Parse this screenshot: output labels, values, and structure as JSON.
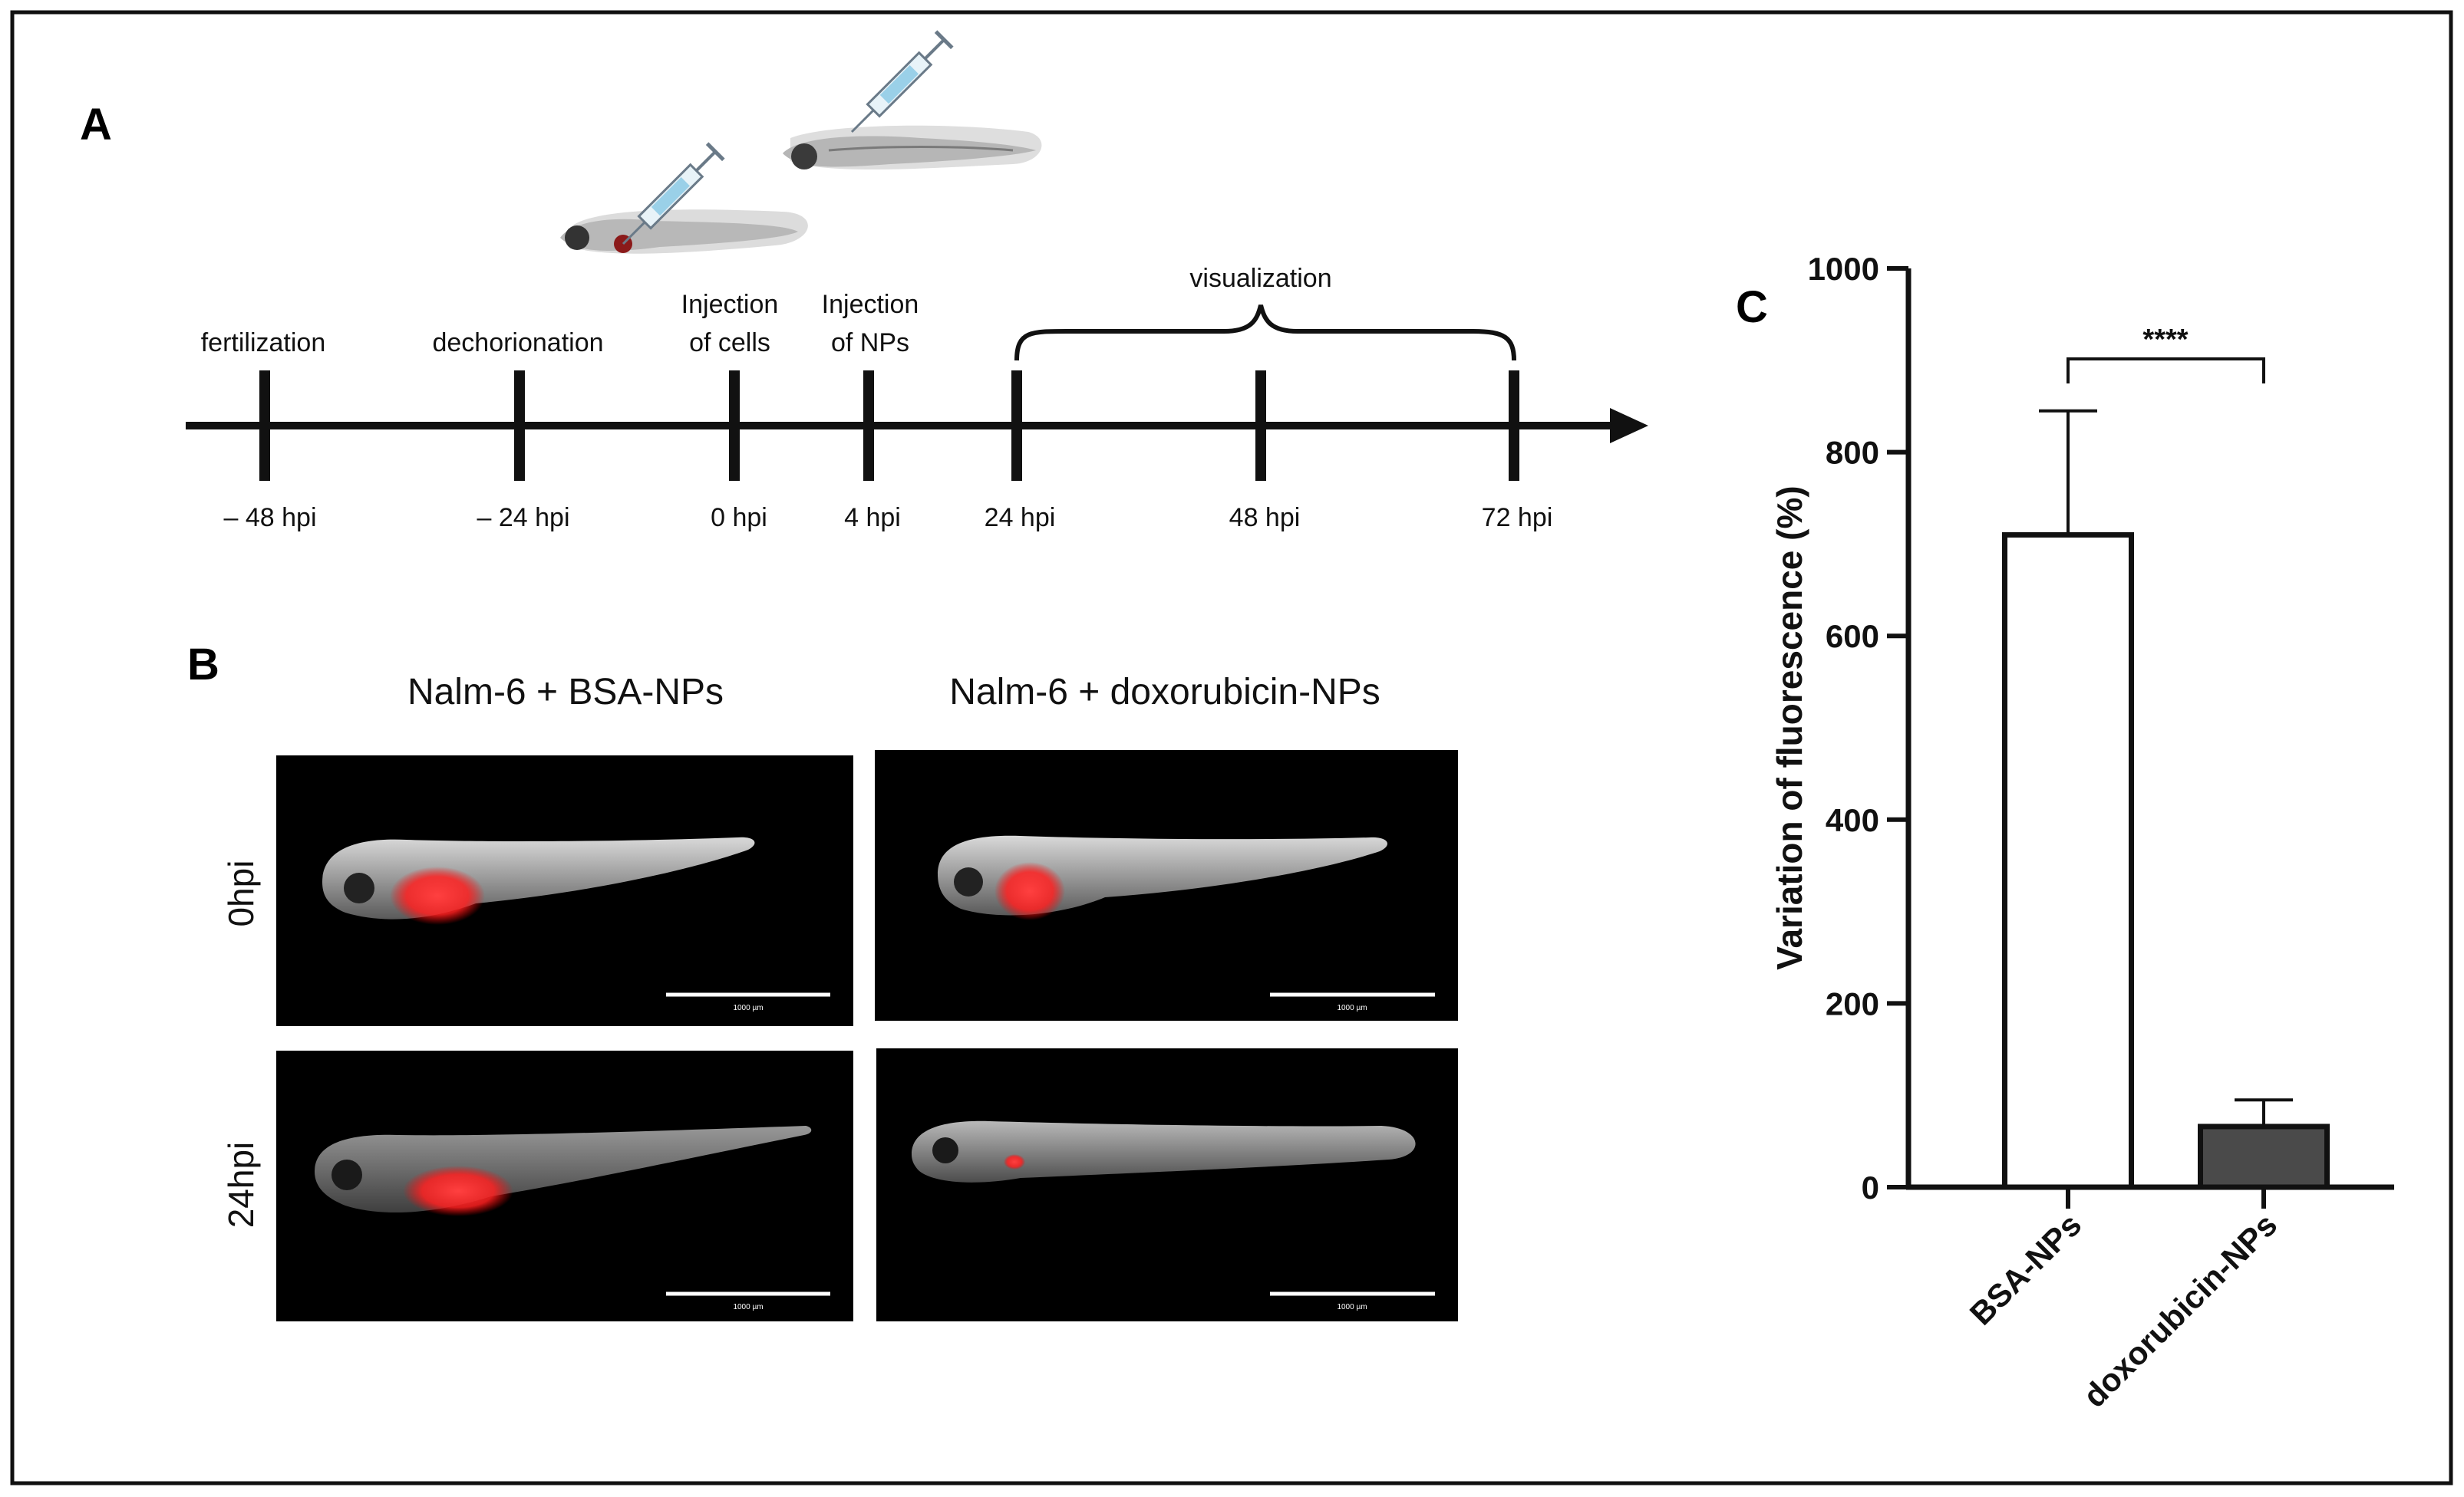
{
  "panels": {
    "A": {
      "label": "A",
      "events": [
        {
          "label_lines": [
            "fertilization"
          ],
          "time": "– 48 hpi"
        },
        {
          "label_lines": [
            "dechorionation"
          ],
          "time": "– 24 hpi"
        },
        {
          "label_lines": [
            "Injection",
            "of cells"
          ],
          "time": "0 hpi"
        },
        {
          "label_lines": [
            "Injection",
            "of NPs"
          ],
          "time": "4 hpi"
        },
        {
          "label_lines": [],
          "time": "24 hpi"
        },
        {
          "label_lines": [],
          "time": "48 hpi"
        },
        {
          "label_lines": [],
          "time": "72 hpi"
        }
      ],
      "bracket_label": "visualization"
    },
    "B": {
      "label": "B",
      "columns": [
        "Nalm-6 + BSA-NPs",
        "Nalm-6 + doxorubicin-NPs"
      ],
      "rows": [
        "0hpi",
        "24hpi"
      ],
      "scale_bar_label": "1000 µm"
    },
    "C": {
      "label": "C",
      "significance": "****",
      "chart_data": {
        "type": "bar",
        "categories": [
          "BSA-NPs",
          "doxorubicin-NPs"
        ],
        "values": [
          710,
          66
        ],
        "error_upper": [
          845,
          95
        ],
        "bar_colors": [
          "#ffffff",
          "#4a4a4a"
        ],
        "ylabel": "Variation of fluorescence (%)",
        "ylim": [
          0,
          1000
        ],
        "yticks": [
          0,
          200,
          400,
          600,
          800,
          1000
        ],
        "grid": false
      }
    }
  },
  "colors": {
    "frame": "#111111",
    "timeline": "#111111",
    "fluorescence": "#ff2a2a",
    "image_background": "#000000"
  }
}
